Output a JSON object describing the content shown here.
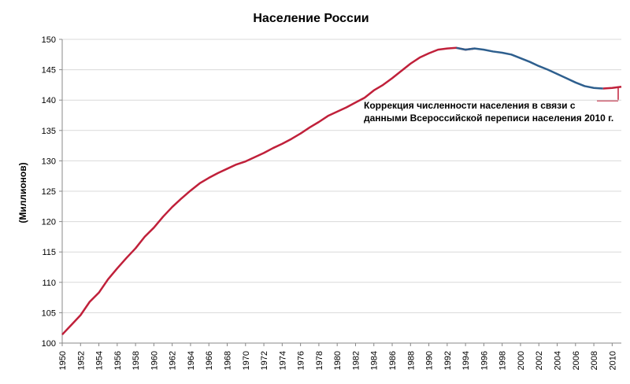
{
  "chart_data": {
    "type": "line",
    "title": "Население России",
    "y_label": "(Миллионов)",
    "annotation": [
      "Коррекция численности населения в связи с",
      "данными Всероссийской переписи населения 2010 г."
    ],
    "x": [
      1950,
      1951,
      1952,
      1953,
      1954,
      1955,
      1956,
      1957,
      1958,
      1959,
      1960,
      1961,
      1962,
      1963,
      1964,
      1965,
      1966,
      1967,
      1968,
      1969,
      1970,
      1971,
      1972,
      1973,
      1974,
      1975,
      1976,
      1977,
      1978,
      1979,
      1980,
      1981,
      1982,
      1983,
      1984,
      1985,
      1986,
      1987,
      1988,
      1989,
      1990,
      1991,
      1992,
      1993,
      1994,
      1995,
      1996,
      1997,
      1998,
      1999,
      2000,
      2001,
      2002,
      2003,
      2004,
      2005,
      2006,
      2007,
      2008,
      2009,
      2010,
      2011
    ],
    "series": [
      {
        "color": "#c0203a",
        "values": [
          101.4,
          103.0,
          104.6,
          106.8,
          108.3,
          110.5,
          112.3,
          114.0,
          115.6,
          117.5,
          119.0,
          120.8,
          122.4,
          123.8,
          125.1,
          126.3,
          127.2,
          128.0,
          128.7,
          129.4,
          129.9,
          130.6,
          131.3,
          132.1,
          132.8,
          133.6,
          134.5,
          135.5,
          136.4,
          137.4,
          138.1,
          138.8,
          139.6,
          140.4,
          141.6,
          142.5,
          143.6,
          144.8,
          146.0,
          147.0,
          147.7,
          148.3,
          148.5,
          148.6,
          148.3,
          148.5,
          null,
          null,
          null,
          null,
          null,
          null,
          null,
          null,
          null,
          null,
          null,
          null,
          null,
          141.9,
          142.0,
          142.2
        ]
      },
      {
        "color": "#2e5f8e",
        "values": [
          null,
          null,
          null,
          null,
          null,
          null,
          null,
          null,
          null,
          null,
          null,
          null,
          null,
          null,
          null,
          null,
          null,
          null,
          null,
          null,
          null,
          null,
          null,
          null,
          null,
          null,
          null,
          null,
          null,
          null,
          null,
          null,
          null,
          null,
          null,
          null,
          null,
          null,
          null,
          null,
          null,
          null,
          null,
          148.6,
          148.3,
          148.5,
          148.3,
          148.0,
          147.8,
          147.5,
          146.9,
          146.3,
          145.6,
          145.0,
          144.3,
          143.6,
          142.9,
          142.3,
          142.0,
          141.9,
          null,
          null
        ]
      }
    ],
    "xlim": [
      1950,
      2011
    ],
    "xticks": [
      1950,
      1952,
      1954,
      1956,
      1958,
      1960,
      1962,
      1964,
      1966,
      1968,
      1970,
      1972,
      1974,
      1976,
      1978,
      1980,
      1982,
      1984,
      1986,
      1988,
      1990,
      1992,
      1994,
      1996,
      1998,
      2000,
      2002,
      2004,
      2006,
      2008,
      2010
    ],
    "ylim": [
      100,
      150
    ],
    "yticks": [
      100,
      105,
      110,
      115,
      120,
      125,
      130,
      135,
      140,
      145,
      150
    ],
    "grid": true
  }
}
